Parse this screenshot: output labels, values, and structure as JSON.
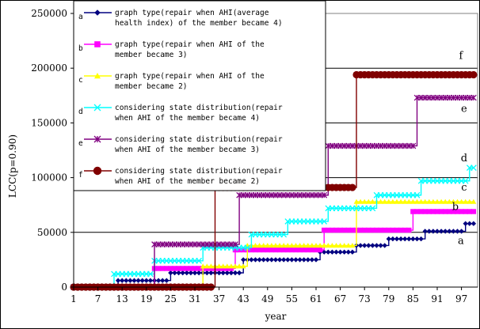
{
  "chart_data": {
    "type": "line",
    "title": "",
    "xlabel": "year",
    "ylabel": "LCC(p=0.90)",
    "ylim": [
      0,
      250000
    ],
    "xlim": [
      1,
      101
    ],
    "grid": "horizontal",
    "legend_position": "top-left",
    "y_ticks": [
      "0",
      "50000",
      "100000",
      "150000",
      "200000",
      "250000"
    ],
    "y_tick_values": [
      0,
      50000,
      100000,
      150000,
      200000,
      250000
    ],
    "x_ticks": [
      "1",
      "7",
      "13",
      "19",
      "25",
      "31",
      "37",
      "43",
      "49",
      "55",
      "61",
      "67",
      "73",
      "79",
      "85",
      "91",
      "97"
    ],
    "x_tick_values": [
      1,
      7,
      13,
      19,
      25,
      31,
      37,
      43,
      49,
      55,
      61,
      67,
      73,
      79,
      85,
      91,
      97
    ],
    "series": [
      {
        "tag": "a",
        "name": "graph type(repair when AHI(average health index) of the member became 4)",
        "legend_lines": [
          "graph type(repair when AHI(average",
          "health index) of the member became 4)"
        ],
        "color": "#000080",
        "marker": "diamond",
        "end_label": "a",
        "steps": [
          [
            1,
            0
          ],
          [
            12,
            6000
          ],
          [
            25,
            13000
          ],
          [
            43,
            25000
          ],
          [
            62,
            32000
          ],
          [
            71,
            38000
          ],
          [
            79,
            44000
          ],
          [
            88,
            51000
          ],
          [
            98,
            58000
          ]
        ],
        "x_end": 100
      },
      {
        "tag": "b",
        "name": "graph type(repair when AHI of the member became 3)",
        "legend_lines": [
          "graph type(repair when AHI of the",
          "member became 3)"
        ],
        "color": "#ff00ff",
        "marker": "square",
        "end_label": "b",
        "steps": [
          [
            1,
            0
          ],
          [
            21,
            17000
          ],
          [
            41,
            34000
          ],
          [
            63,
            52000
          ],
          [
            85,
            69000
          ]
        ],
        "x_end": 100
      },
      {
        "tag": "c",
        "name": "graph type(repair when AHI of the member became 2)",
        "legend_lines": [
          "graph type(repair when AHI of the",
          "member became 2)"
        ],
        "color": "#ffff00",
        "marker": "triangle",
        "end_label": "c",
        "steps": [
          [
            1,
            0
          ],
          [
            33,
            19000
          ],
          [
            44,
            38000
          ],
          [
            71,
            78000
          ]
        ],
        "x_end": 100
      },
      {
        "tag": "d",
        "name": "considering state distribution(repair when AHI of the member became 4)",
        "legend_lines": [
          "considering state distribution(repair",
          "when AHI of the member became 4)"
        ],
        "color": "#00ffff",
        "marker": "x",
        "end_label": "d",
        "steps": [
          [
            1,
            0
          ],
          [
            11,
            12000
          ],
          [
            21,
            24000
          ],
          [
            33,
            36000
          ],
          [
            45,
            48000
          ],
          [
            54,
            60000
          ],
          [
            64,
            72000
          ],
          [
            76,
            84000
          ],
          [
            87,
            97000
          ],
          [
            99,
            109000
          ]
        ],
        "x_end": 100
      },
      {
        "tag": "e",
        "name": "considering state distribution(repair when AHI of the member became 3)",
        "legend_lines": [
          "considering state distribution(repair",
          "when AHI of the member became 3)"
        ],
        "color": "#800080",
        "marker": "star",
        "end_label": "e",
        "steps": [
          [
            1,
            0
          ],
          [
            21,
            39000
          ],
          [
            42,
            84000
          ],
          [
            64,
            129000
          ],
          [
            86,
            173000
          ]
        ],
        "x_end": 100
      },
      {
        "tag": "f",
        "name": "considering state distribution(repair when AHI of the member became 2)",
        "legend_lines": [
          "considering state distribution(repair",
          "when AHI of the member became 2)"
        ],
        "color": "#800000",
        "marker": "circle",
        "end_label": "f",
        "steps": [
          [
            1,
            0
          ],
          [
            36,
            91000
          ],
          [
            71,
            194000
          ]
        ],
        "x_end": 100
      }
    ]
  }
}
